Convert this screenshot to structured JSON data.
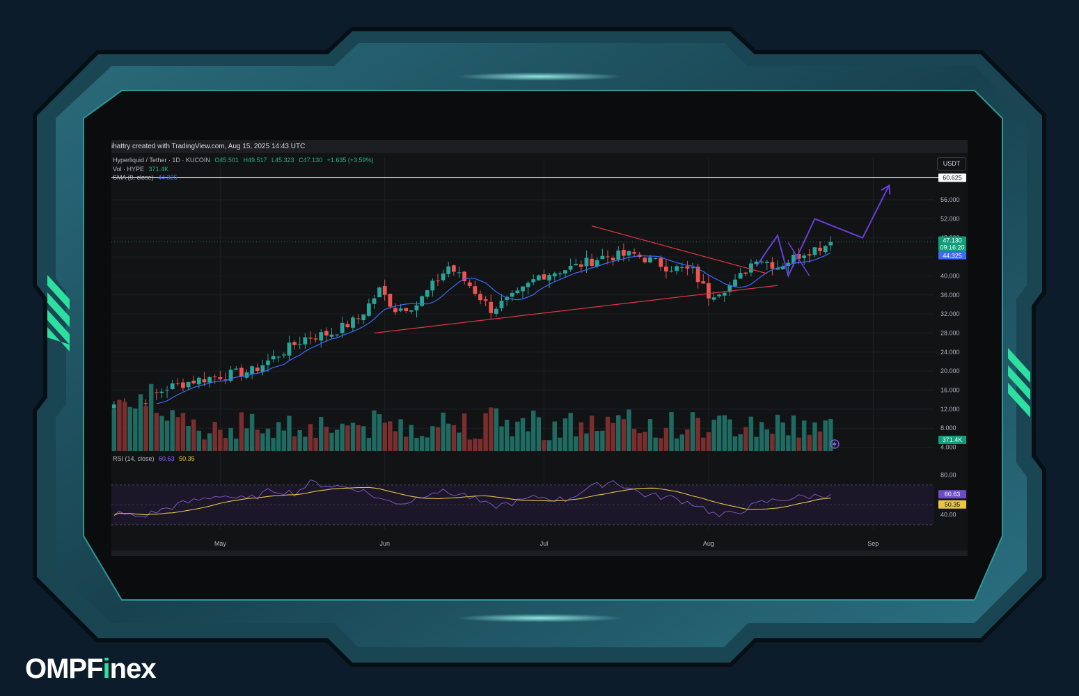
{
  "header": {
    "credit": "ihattry created with TradingView.com, Aug 15, 2025 14:43 UTC"
  },
  "legend": {
    "symbol": "Hyperliquid / Tether · 1D · KUCOIN",
    "open": "O45.501",
    "high": "H49.517",
    "low": "L45.323",
    "close": "C47.130",
    "change": "+1.635 (+3.59%)",
    "vol_label": "Vol · HYPE",
    "vol_value": "371.4K",
    "sma_label": "SMA (9, close)",
    "sma_value": "44.325",
    "rsi_label": "RSI (14, close)",
    "rsi_value": "60.63",
    "rsi_ma_value": "50.35"
  },
  "currency": "USDT",
  "branding": {
    "logo_a": "OMPF",
    "logo_accent": "i",
    "logo_b": "nex"
  },
  "colors": {
    "up": "#26a69a",
    "down": "#ef5350",
    "sma": "#3d6bff",
    "rsi": "#7e57c2",
    "rsi_ma": "#e8c545",
    "projection": "#6a3fd6",
    "trendline": "#e33545",
    "resistance": "#ffffff",
    "price_badge": "#0f9e7a",
    "sma_badge": "#3d6bff"
  },
  "chart_data": {
    "type": "candlestick",
    "x_labels": [
      "May",
      "Jun",
      "Jul",
      "Aug",
      "Sep"
    ],
    "x_label_days": [
      20,
      51,
      81,
      112,
      143
    ],
    "y_ticks": [
      "56.000",
      "52.000",
      "48.000",
      "44.000",
      "40.000",
      "36.000",
      "32.000",
      "28.000",
      "24.000",
      "20.000",
      "16.000",
      "12.000",
      "8.000",
      "4.000"
    ],
    "y_range": [
      3.5,
      62
    ],
    "rsi_ticks": [
      "80.00",
      "40.00"
    ],
    "rsi_range": [
      25,
      95
    ],
    "resistance_level": 60.625,
    "resistance_label": "60.625",
    "last_price_label": "47.130",
    "countdown_label": "09:16:20",
    "sma_label_value": "44.325",
    "volume_label": "371.4K",
    "rsi_value_label": "60.63",
    "rsi_ma_label": "50.35",
    "days": 136,
    "anchors": {
      "day": [
        0,
        4,
        6,
        10,
        15,
        20,
        26,
        36,
        41,
        46,
        50,
        53,
        57,
        63,
        67,
        71,
        76,
        80,
        87,
        92,
        98,
        104,
        109,
        112,
        117,
        121,
        125,
        130,
        134,
        135
      ],
      "price": [
        13,
        12,
        14,
        16.5,
        18,
        19,
        20,
        27,
        28,
        31,
        37,
        33,
        34,
        42,
        38,
        33,
        36,
        40,
        42,
        44,
        44.5,
        42,
        41,
        36,
        38.5,
        44,
        42,
        45,
        46.5,
        47.1
      ]
    },
    "rsi_anchors": {
      "day": [
        0,
        5,
        12,
        20,
        25,
        30,
        34,
        37,
        46,
        51,
        55,
        60,
        66,
        71,
        75,
        80,
        85,
        89,
        94,
        100,
        105,
        110,
        114,
        118,
        122,
        126,
        130,
        134,
        135
      ],
      "value": [
        42,
        38,
        50,
        60,
        55,
        65,
        62,
        72,
        66,
        54,
        52,
        64,
        60,
        48,
        52,
        58,
        55,
        66,
        74,
        60,
        57,
        50,
        38,
        44,
        52,
        56,
        58,
        60,
        60.6
      ]
    },
    "trendline_lower": [
      [
        49,
        28
      ],
      [
        125,
        38
      ]
    ],
    "trendline_upper": [
      [
        90,
        50.5
      ],
      [
        123,
        40.5
      ]
    ],
    "projection": [
      [
        121,
        42
      ],
      [
        125,
        48.5
      ],
      [
        127,
        40
      ],
      [
        132,
        52
      ],
      [
        141,
        48
      ],
      [
        146,
        59
      ]
    ]
  }
}
